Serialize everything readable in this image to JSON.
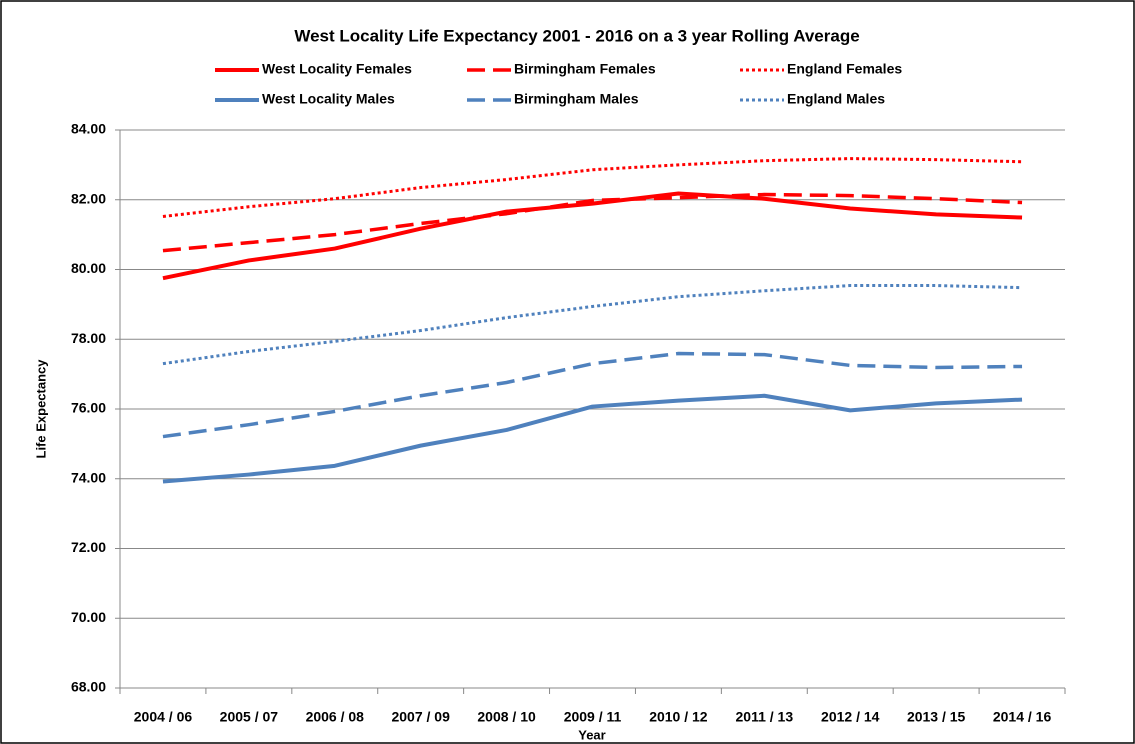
{
  "chart_data": {
    "type": "line",
    "title": "West Locality Life Expectancy 2001 - 2016 on a 3 year Rolling Average",
    "x_label": "Year",
    "y_label": "Life Expectancy",
    "categories": [
      "2004 / 06",
      "2005 / 07",
      "2006 / 08",
      "2007 / 09",
      "2008 / 10",
      "2009 / 11",
      "2010 / 12",
      "2011 / 13",
      "2012 / 14",
      "2013 / 15",
      "2014 / 16"
    ],
    "series": [
      {
        "name": "West Locality Females",
        "color": "#ff0000",
        "style": "solid",
        "values": [
          79.75,
          80.26,
          80.6,
          81.17,
          81.66,
          81.89,
          82.18,
          82.03,
          81.75,
          81.58,
          81.49
        ]
      },
      {
        "name": "Birmingham Females",
        "color": "#ff0000",
        "style": "dashed",
        "values": [
          80.54,
          80.77,
          81.0,
          81.32,
          81.6,
          81.98,
          82.06,
          82.15,
          82.12,
          82.03,
          81.92
        ]
      },
      {
        "name": "England Females",
        "color": "#ff0000",
        "style": "dotted",
        "values": [
          81.52,
          81.8,
          82.03,
          82.35,
          82.58,
          82.86,
          83.0,
          83.12,
          83.18,
          83.15,
          83.09
        ]
      },
      {
        "name": "West Locality Males",
        "color": "#4f81bd",
        "style": "solid",
        "values": [
          73.92,
          74.12,
          74.37,
          74.95,
          75.4,
          76.07,
          76.24,
          76.38,
          75.96,
          76.16,
          76.27
        ]
      },
      {
        "name": "Birmingham Males",
        "color": "#4f81bd",
        "style": "dashed",
        "values": [
          75.21,
          75.55,
          75.93,
          76.38,
          76.76,
          77.3,
          77.59,
          77.56,
          77.25,
          77.19,
          77.22
        ]
      },
      {
        "name": "England Males",
        "color": "#4f81bd",
        "style": "dotted",
        "values": [
          77.3,
          77.65,
          77.94,
          78.25,
          78.62,
          78.94,
          79.22,
          79.39,
          79.54,
          79.54,
          79.48
        ]
      }
    ],
    "ylim": [
      68,
      84
    ],
    "yticks": [
      {
        "value": 68,
        "label": "68.00"
      },
      {
        "value": 70,
        "label": "70.00"
      },
      {
        "value": 72,
        "label": "72.00"
      },
      {
        "value": 74,
        "label": "74.00"
      },
      {
        "value": 76,
        "label": "76.00"
      },
      {
        "value": 78,
        "label": "78.00"
      },
      {
        "value": 80,
        "label": "80.00"
      },
      {
        "value": 82,
        "label": "82.00"
      },
      {
        "value": 84,
        "label": "84.00"
      }
    ],
    "grid": true,
    "legend": "top"
  }
}
